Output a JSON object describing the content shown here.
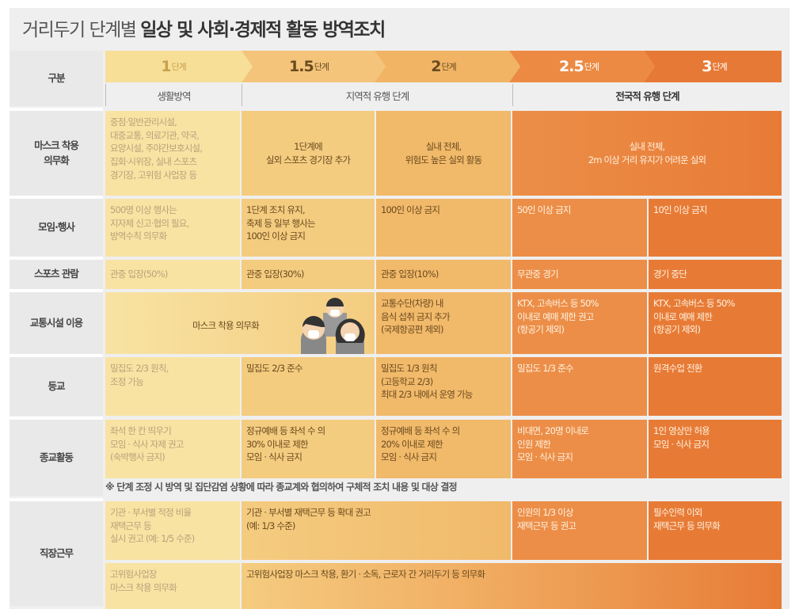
{
  "title": {
    "light": "거리두기 단계별",
    "bold": "일상 및 사회·경제적 활동 방역조치"
  },
  "header_label": "구분",
  "stages": [
    {
      "num": "1",
      "unit": "단계"
    },
    {
      "num": "1.5",
      "unit": "단계"
    },
    {
      "num": "2",
      "unit": "단계"
    },
    {
      "num": "2.5",
      "unit": "단계"
    },
    {
      "num": "3",
      "unit": "단계"
    }
  ],
  "phases": [
    "생활방역",
    "지역적 유행 단계",
    "전국적 유행 단계"
  ],
  "colors": {
    "stage1": "#f8e3a3",
    "stage15": "#f4cc80",
    "stage2": "#f1b96a",
    "stage25": "#ec8e48",
    "stage3": "#e77b36",
    "label_bg": "#e9e9e9"
  },
  "rows": {
    "mask": {
      "label": "마스크 착용\n의무화",
      "s1": "중점·일반관리시설,\n대중교통, 의료기관, 약국,\n요양시설, 주야간보호시설,\n집회·시위장, 실내 스포츠\n경기장, 고위험 사업장 등",
      "s15": "1단계에\n실외 스포츠 경기장 추가",
      "s2": "실내 전체,\n위험도 높은 실외 활동",
      "s25_3": "실내 전체,\n2m 이상 거리 유지가 어려운 실외"
    },
    "gathering": {
      "label": "모임·행사",
      "s1": "500명 이상 행사는\n지자체 신고·협의 필요,\n방역수칙 의무화",
      "s15": "1단계 조치 유지,\n축제 등 일부 행사는\n100인 이상 금지",
      "s2": "100인 이상 금지",
      "s25": "50인 이상 금지",
      "s3": "10인 이상 금지"
    },
    "sports": {
      "label": "스포츠 관람",
      "s1": "관중 입장(50%)",
      "s15": "관중 입장(30%)",
      "s2": "관중 입장(10%)",
      "s25": "무관중 경기",
      "s3": "경기 중단"
    },
    "transport": {
      "label": "교통시설 이용",
      "s1_15": "마스크 착용 의무화",
      "s2": "교통수단(차량) 내\n음식 섭취 금지 추가\n(국제항공편 제외)",
      "s25": "KTX, 고속버스 등 50%\n이내로 예매 제한 권고\n(항공기 제외)",
      "s3": "KTX, 고속버스 등 50%\n이내로 예매 제한\n(항공기 제외)"
    },
    "school": {
      "label": "등교",
      "s1": "밀집도 2/3 원칙,\n조정 가능",
      "s15": "밀집도 2/3 준수",
      "s2": "밀집도 1/3 원칙\n(고등학교 2/3)\n최대 2/3 내에서 운영 가능",
      "s25": "밀집도 1/3 준수",
      "s3": "원격수업 전환"
    },
    "religion": {
      "label": "종교활동",
      "s1": "좌석 한 칸 띄우기\n모임 · 식사 자제 권고\n(숙박행사 금지)",
      "s15": "정규예배 등 좌석 수 의\n30% 이내로 제한\n모임 · 식사 금지",
      "s2": "정규예배 등 좌석 수 의\n20% 이내로 제한\n모임 · 식사 금지",
      "s25": "비대면, 20명 이내로\n인원 제한\n모임 · 식사 금지",
      "s3": "1인 영상만 허용\n모임 · 식사 금지",
      "note": "※ 단계 조정 시 방역 및 집단감염 상황에 따라 종교계와 협의하여 구체적 조치 내용 및 대상 결정"
    },
    "work": {
      "label": "직장근무",
      "s1": "기관 · 부서별 적정 비율\n재택근무 등\n실시 권고 (예: 1/5 수준)",
      "s15_2": "기관 · 부서별 재택근무 등 확대 권고\n(예: 1/3 수준)",
      "s25": "인원의 1/3 이상\n재택근무 등 권고",
      "s3": "필수인력 이외\n재택근무 등 의무화",
      "hr_s1": "고위험사업장\n마스크 착용 의무화",
      "hr_rest": "고위험사업장 마스크 착용, 환기 · 소독, 근로자 간 거리두기 등 의무화"
    }
  }
}
